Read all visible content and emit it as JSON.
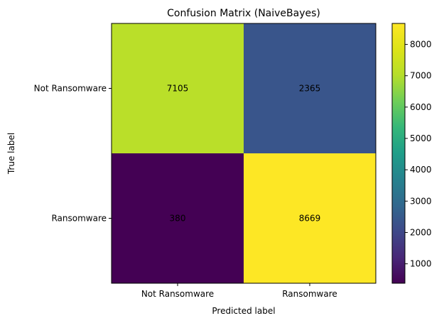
{
  "chart_data": {
    "type": "heatmap",
    "title": "Confusion Matrix (NaiveBayes)",
    "xlabel": "Predicted label",
    "ylabel": "True label",
    "x_categories": [
      "Not Ransomware",
      "Ransomware"
    ],
    "y_categories": [
      "Not Ransomware",
      "Ransomware"
    ],
    "values": [
      [
        7105,
        2365
      ],
      [
        380,
        8669
      ]
    ],
    "colormap": "viridis",
    "colorbar": {
      "range": [
        380,
        8669
      ],
      "ticks": [
        1000,
        2000,
        3000,
        4000,
        5000,
        6000,
        7000,
        8000
      ]
    },
    "label_colors": {
      "dark": "#000000",
      "light": "#fde725"
    },
    "grid": false
  }
}
